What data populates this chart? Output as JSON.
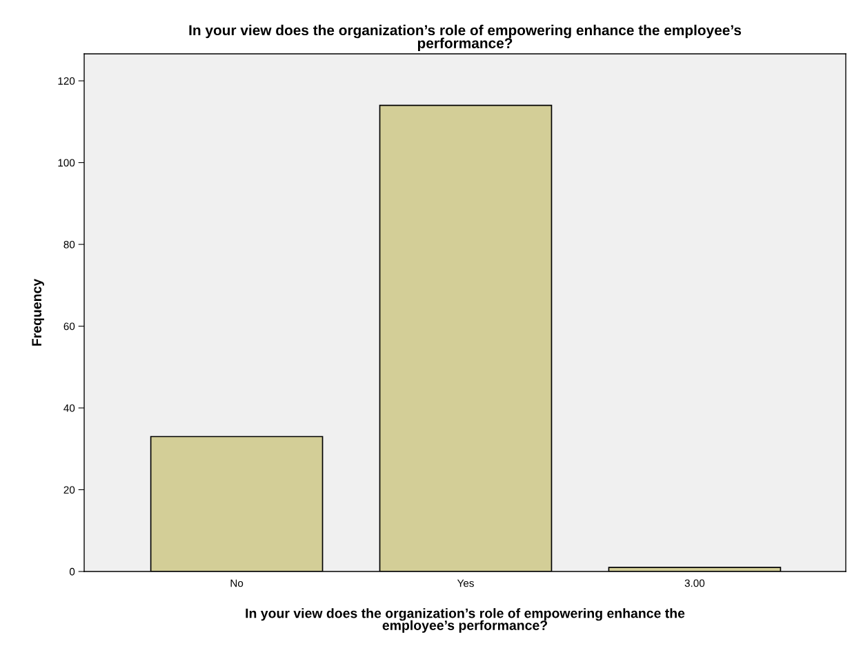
{
  "chart_data": {
    "type": "bar",
    "title": "In your view does the organization’s role of empowering enhance the employee’s\nperformance?",
    "xlabel": "In your view does the organization’s role of empowering enhance the\nemployee’s performance?",
    "ylabel": "Frequency",
    "categories": [
      "No",
      "Yes",
      "3.00"
    ],
    "values": [
      33,
      114,
      1
    ],
    "color": "#d3ce97",
    "ylim": [
      0,
      126.6
    ],
    "yticks": [
      0,
      20,
      40,
      60,
      80,
      100,
      120
    ],
    "grid": false,
    "legend": false
  }
}
